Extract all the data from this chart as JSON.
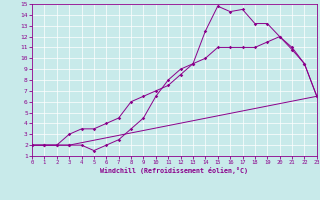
{
  "xlabel": "Windchill (Refroidissement éolien,°C)",
  "background_color": "#c8eaea",
  "line_color": "#8b008b",
  "grid_color": "#ffffff",
  "xmin": 0,
  "xmax": 23,
  "ymin": 1,
  "ymax": 15,
  "line1_x": [
    0,
    1,
    2,
    3,
    4,
    5,
    6,
    7,
    8,
    9,
    10,
    11,
    12,
    13,
    14,
    15,
    16,
    17,
    18,
    19,
    20,
    21,
    22,
    23
  ],
  "line1_y": [
    2,
    2,
    2,
    2,
    2,
    1.5,
    2.0,
    2.5,
    3.5,
    4.5,
    6.5,
    8.0,
    9.0,
    9.5,
    12.5,
    14.8,
    14.3,
    14.5,
    13.2,
    13.2,
    12.0,
    10.8,
    9.5,
    6.5
  ],
  "line2_x": [
    0,
    1,
    2,
    3,
    4,
    5,
    6,
    7,
    8,
    9,
    10,
    11,
    12,
    13,
    14,
    15,
    16,
    17,
    18,
    19,
    20,
    21,
    22,
    23
  ],
  "line2_y": [
    2,
    2,
    2,
    3,
    3.5,
    3.5,
    4.0,
    4.5,
    6.0,
    6.5,
    7.0,
    7.5,
    8.5,
    9.5,
    10.0,
    11.0,
    11.0,
    11.0,
    11.0,
    11.5,
    12.0,
    11.0,
    9.5,
    6.5
  ],
  "line3_x": [
    0,
    3,
    23
  ],
  "line3_y": [
    2,
    2,
    6.5
  ],
  "xticks": [
    0,
    1,
    2,
    3,
    4,
    5,
    6,
    7,
    8,
    9,
    10,
    11,
    12,
    13,
    14,
    15,
    16,
    17,
    18,
    19,
    20,
    21,
    22,
    23
  ],
  "yticks": [
    1,
    2,
    3,
    4,
    5,
    6,
    7,
    8,
    9,
    10,
    11,
    12,
    13,
    14,
    15
  ]
}
